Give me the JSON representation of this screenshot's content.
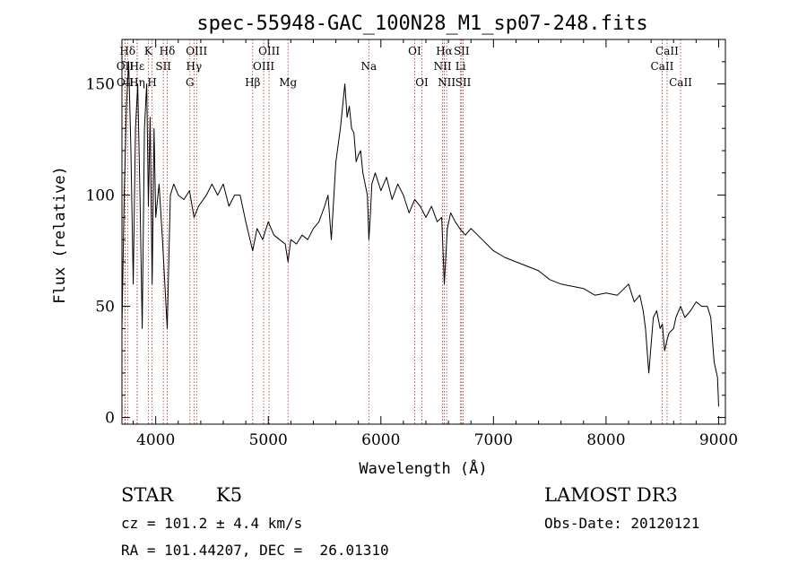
{
  "chart_data": {
    "type": "line",
    "title": "spec-55948-GAC_100N28_M1_sp07-248.fits",
    "xlabel": "Wavelength (Å)",
    "ylabel": "Flux (relative)",
    "xlim": [
      3700,
      9060
    ],
    "ylim": [
      -3,
      170
    ],
    "xticks": [
      4000,
      5000,
      6000,
      7000,
      8000,
      9000
    ],
    "yticks": [
      0,
      50,
      100,
      150
    ],
    "grid": false,
    "series": [
      {
        "name": "spectrum",
        "x": [
          3700,
          3720,
          3740,
          3760,
          3780,
          3800,
          3820,
          3840,
          3860,
          3880,
          3900,
          3920,
          3935,
          3950,
          3968,
          3985,
          4000,
          4030,
          4060,
          4102,
          4130,
          4160,
          4200,
          4250,
          4300,
          4340,
          4380,
          4450,
          4500,
          4550,
          4600,
          4650,
          4700,
          4750,
          4800,
          4861,
          4900,
          4950,
          5000,
          5050,
          5100,
          5150,
          5175,
          5200,
          5250,
          5300,
          5350,
          5400,
          5450,
          5500,
          5530,
          5560,
          5600,
          5640,
          5660,
          5680,
          5700,
          5720,
          5740,
          5760,
          5780,
          5800,
          5820,
          5840,
          5860,
          5880,
          5893,
          5905,
          5920,
          5950,
          6000,
          6050,
          6100,
          6150,
          6200,
          6250,
          6300,
          6350,
          6400,
          6450,
          6500,
          6540,
          6563,
          6590,
          6620,
          6660,
          6700,
          6750,
          6800,
          6900,
          7000,
          7100,
          7200,
          7300,
          7400,
          7500,
          7600,
          7700,
          7800,
          7900,
          8000,
          8100,
          8200,
          8250,
          8300,
          8330,
          8350,
          8380,
          8420,
          8450,
          8480,
          8500,
          8520,
          8542,
          8560,
          8600,
          8620,
          8662,
          8700,
          8750,
          8800,
          8850,
          8900,
          8930,
          8960,
          8990,
          9000
        ],
        "values": [
          40,
          100,
          140,
          160,
          120,
          60,
          130,
          150,
          100,
          40,
          130,
          150,
          95,
          135,
          60,
          130,
          90,
          105,
          80,
          40,
          100,
          105,
          100,
          98,
          102,
          90,
          95,
          100,
          105,
          100,
          105,
          95,
          100,
          100,
          88,
          75,
          85,
          80,
          88,
          82,
          80,
          78,
          70,
          80,
          78,
          82,
          80,
          85,
          88,
          95,
          100,
          80,
          115,
          130,
          140,
          150,
          135,
          140,
          130,
          128,
          115,
          118,
          120,
          110,
          105,
          100,
          80,
          90,
          105,
          110,
          102,
          108,
          98,
          105,
          100,
          92,
          98,
          95,
          90,
          95,
          88,
          90,
          60,
          85,
          92,
          88,
          85,
          82,
          85,
          80,
          75,
          72,
          70,
          68,
          66,
          62,
          60,
          59,
          58,
          55,
          56,
          55,
          60,
          52,
          55,
          48,
          40,
          20,
          45,
          48,
          40,
          42,
          30,
          35,
          38,
          40,
          45,
          50,
          45,
          48,
          52,
          50,
          50,
          45,
          25,
          18,
          5
        ]
      }
    ],
    "line_markers": [
      {
        "label": "Hδ",
        "x": 3750,
        "row": 1
      },
      {
        "label": "OII",
        "x": 3727,
        "row": 2
      },
      {
        "label": "OII",
        "x": 3729,
        "row": 3
      },
      {
        "label": "Hε",
        "x": 3835,
        "row": 2
      },
      {
        "label": "Hη",
        "x": 3835,
        "row": 3
      },
      {
        "label": "K",
        "x": 3934,
        "row": 1
      },
      {
        "label": "H",
        "x": 3968,
        "row": 3
      },
      {
        "label": "SII",
        "x": 4068,
        "row": 2
      },
      {
        "label": "Hδ",
        "x": 4102,
        "row": 1
      },
      {
        "label": "OIII",
        "x": 4363,
        "row": 1
      },
      {
        "label": "Hγ",
        "x": 4340,
        "row": 2
      },
      {
        "label": "G",
        "x": 4304,
        "row": 3
      },
      {
        "label": "Hβ",
        "x": 4861,
        "row": 3
      },
      {
        "label": "OIII",
        "x": 5007,
        "row": 1
      },
      {
        "label": "OIII",
        "x": 4959,
        "row": 2
      },
      {
        "label": "Mg",
        "x": 5175,
        "row": 3
      },
      {
        "label": "Na",
        "x": 5893,
        "row": 2
      },
      {
        "label": "OI",
        "x": 6300,
        "row": 1
      },
      {
        "label": "OI",
        "x": 6364,
        "row": 3
      },
      {
        "label": "Hα",
        "x": 6563,
        "row": 1
      },
      {
        "label": "NII",
        "x": 6548,
        "row": 2
      },
      {
        "label": "NII",
        "x": 6584,
        "row": 3
      },
      {
        "label": "SII",
        "x": 6717,
        "row": 1
      },
      {
        "label": "Li",
        "x": 6708,
        "row": 2
      },
      {
        "label": "SII",
        "x": 6731,
        "row": 3
      },
      {
        "label": "CaII",
        "x": 8542,
        "row": 1
      },
      {
        "label": "CaII",
        "x": 8498,
        "row": 2
      },
      {
        "label": "CaII",
        "x": 8662,
        "row": 3
      }
    ]
  },
  "info": {
    "object_class": "STAR",
    "subclass": "K5",
    "survey": "LAMOST DR3",
    "redshift": "cz = 101.2 ± 4.4 km/s",
    "obs_date": "Obs-Date: 20120121",
    "coords": "RA = 101.44207, DEC =  26.01310"
  },
  "colors": {
    "spectrum": "#000000",
    "marker_line": "#b0302e",
    "axis": "#000000"
  }
}
